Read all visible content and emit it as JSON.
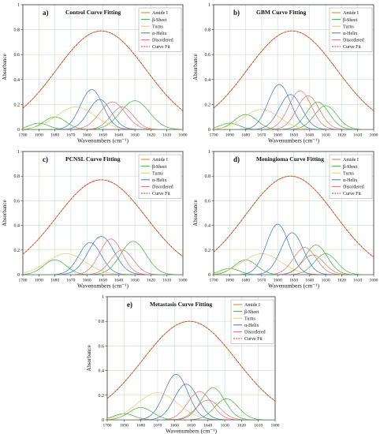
{
  "chart_data": [
    {
      "type": "line",
      "panel_label": "a)",
      "title": "Control Curve Fitting",
      "xlabel": "Wavenumbers (cm⁻¹)",
      "ylabel": "Absorbance",
      "xlim": [
        1700,
        1600
      ],
      "ylim": [
        0,
        1
      ],
      "x_ticks": [
        1700,
        1690,
        1680,
        1670,
        1660,
        1650,
        1640,
        1630,
        1620,
        1610,
        1600
      ],
      "y_ticks": [
        0,
        0.2,
        0.4,
        0.6,
        0.8,
        1
      ],
      "grid": true,
      "legend_position": "top-right",
      "series": [
        {
          "name": "Amide I",
          "color": "#e07a2a",
          "style": "solid",
          "peaks": [
            [
              1651,
              0.79,
              28
            ]
          ]
        },
        {
          "name": "β-Sheet",
          "color": "#3db03d",
          "style": "solid",
          "peaks": [
            [
              1690,
              0.05,
              6
            ],
            [
              1680,
              0.1,
              7
            ],
            [
              1630,
              0.23,
              9
            ]
          ]
        },
        {
          "name": "Turns",
          "color": "#e8c86a",
          "style": "solid",
          "peaks": [
            [
              1667,
              0.18,
              12
            ]
          ]
        },
        {
          "name": "α-Helix",
          "color": "#3a6fd8",
          "style": "solid",
          "peaks": [
            [
              1657,
              0.32,
              7
            ],
            [
              1652,
              0.24,
              7
            ]
          ]
        },
        {
          "name": "Disordered",
          "color": "#e07070",
          "style": "solid",
          "peaks": [
            [
              1644,
              0.22,
              8
            ],
            [
              1638,
              0.18,
              7
            ]
          ]
        },
        {
          "name": "Curve Fit",
          "color": "#d23a1e",
          "style": "dashed",
          "peaks": [
            [
              1651,
              0.79,
              28
            ]
          ]
        }
      ]
    },
    {
      "type": "line",
      "panel_label": "b)",
      "title": "GBM Curve Fitting",
      "xlabel": "Wavenumbers (cm⁻¹)",
      "ylabel": "Absorbance",
      "xlim": [
        1700,
        1600
      ],
      "ylim": [
        0,
        1
      ],
      "x_ticks": [
        1700,
        1690,
        1680,
        1670,
        1660,
        1650,
        1640,
        1630,
        1620,
        1610,
        1600
      ],
      "y_ticks": [
        0,
        0.2,
        0.4,
        0.6,
        0.8,
        1
      ],
      "grid": true,
      "legend_position": "top-right",
      "series": [
        {
          "name": "Amide I",
          "color": "#e07a2a",
          "style": "solid",
          "peaks": [
            [
              1651,
              0.79,
              28
            ]
          ]
        },
        {
          "name": "β-Sheet",
          "color": "#3db03d",
          "style": "solid",
          "peaks": [
            [
              1690,
              0.05,
              6
            ],
            [
              1680,
              0.12,
              7
            ],
            [
              1635,
              0.22,
              7
            ],
            [
              1630,
              0.19,
              7
            ]
          ]
        },
        {
          "name": "Turns",
          "color": "#e8c86a",
          "style": "solid",
          "peaks": [
            [
              1670,
              0.16,
              11
            ]
          ]
        },
        {
          "name": "α-Helix",
          "color": "#3a6fd8",
          "style": "solid",
          "peaks": [
            [
              1659,
              0.36,
              7
            ],
            [
              1652,
              0.28,
              7
            ]
          ]
        },
        {
          "name": "Disordered",
          "color": "#e07070",
          "style": "solid",
          "peaks": [
            [
              1646,
              0.31,
              7
            ],
            [
              1641,
              0.27,
              7
            ]
          ]
        },
        {
          "name": "Curve Fit",
          "color": "#d23a1e",
          "style": "dashed",
          "peaks": [
            [
              1651,
              0.79,
              28
            ]
          ]
        }
      ]
    },
    {
      "type": "line",
      "panel_label": "c)",
      "title": "PCNSL Curve Fitting",
      "xlabel": "Wavenumbers (cm⁻¹)",
      "ylabel": "Absorbance",
      "xlim": [
        1700,
        1600
      ],
      "ylim": [
        0,
        1
      ],
      "x_ticks": [
        1700,
        1690,
        1680,
        1670,
        1660,
        1650,
        1640,
        1630,
        1620,
        1610,
        1600
      ],
      "y_ticks": [
        0,
        0.2,
        0.4,
        0.6,
        0.8,
        1
      ],
      "grid": true,
      "legend_position": "top-right",
      "series": [
        {
          "name": "Amide I",
          "color": "#e07a2a",
          "style": "solid",
          "peaks": [
            [
              1651,
              0.77,
              28
            ]
          ]
        },
        {
          "name": "β-Sheet",
          "color": "#3db03d",
          "style": "solid",
          "peaks": [
            [
              1680,
              0.12,
              7
            ],
            [
              1631,
              0.27,
              8
            ]
          ]
        },
        {
          "name": "Turns",
          "color": "#e8c86a",
          "style": "solid",
          "peaks": [
            [
              1673,
              0.17,
              12
            ]
          ]
        },
        {
          "name": "α-Helix",
          "color": "#3a6fd8",
          "style": "solid",
          "peaks": [
            [
              1658,
              0.26,
              7
            ],
            [
              1651,
              0.31,
              8
            ]
          ]
        },
        {
          "name": "Disordered",
          "color": "#e07070",
          "style": "solid",
          "peaks": [
            [
              1645,
              0.29,
              7
            ],
            [
              1638,
              0.2,
              7
            ]
          ]
        },
        {
          "name": "Curve Fit",
          "color": "#d23a1e",
          "style": "dashed",
          "peaks": [
            [
              1651,
              0.77,
              28
            ]
          ]
        }
      ]
    },
    {
      "type": "line",
      "panel_label": "d)",
      "title": "Meningioma Curve Fitting",
      "xlabel": "Wavenumbers (cm⁻¹)",
      "ylabel": "Absorbance",
      "xlim": [
        1700,
        1600
      ],
      "ylim": [
        0,
        1
      ],
      "x_ticks": [
        1700,
        1690,
        1680,
        1670,
        1660,
        1650,
        1640,
        1630,
        1620,
        1610,
        1600
      ],
      "y_ticks": [
        0,
        0.2,
        0.4,
        0.6,
        0.8,
        1
      ],
      "grid": true,
      "legend_position": "top-right",
      "series": [
        {
          "name": "Amide I",
          "color": "#e07a2a",
          "style": "solid",
          "peaks": [
            [
              1652,
              0.8,
              28
            ]
          ]
        },
        {
          "name": "β-Sheet",
          "color": "#3db03d",
          "style": "solid",
          "peaks": [
            [
              1690,
              0.05,
              6
            ],
            [
              1680,
              0.12,
              7
            ],
            [
              1636,
              0.24,
              7
            ],
            [
              1630,
              0.17,
              7
            ]
          ]
        },
        {
          "name": "Turns",
          "color": "#e8c86a",
          "style": "solid",
          "peaks": [
            [
              1670,
              0.17,
              12
            ]
          ]
        },
        {
          "name": "α-Helix",
          "color": "#3a6fd8",
          "style": "solid",
          "peaks": [
            [
              1660,
              0.41,
              7
            ],
            [
              1651,
              0.34,
              7
            ]
          ]
        },
        {
          "name": "Disordered",
          "color": "#e07070",
          "style": "solid",
          "peaks": [
            [
              1643,
              0.22,
              7
            ],
            [
              1638,
              0.16,
              7
            ]
          ]
        },
        {
          "name": "Curve Fit",
          "color": "#d23a1e",
          "style": "dashed",
          "peaks": [
            [
              1652,
              0.8,
              28
            ]
          ]
        }
      ]
    },
    {
      "type": "line",
      "panel_label": "e)",
      "title": "Metastasis Curve Fitting",
      "xlabel": "Wavenumbers (cm⁻¹)",
      "ylabel": "Absorbance",
      "xlim": [
        1700,
        1600
      ],
      "ylim": [
        0,
        1
      ],
      "x_ticks": [
        1700,
        1690,
        1680,
        1670,
        1660,
        1650,
        1640,
        1630,
        1620,
        1610,
        1600
      ],
      "y_ticks": [
        0,
        0.2,
        0.4,
        0.6,
        0.8,
        1
      ],
      "grid": true,
      "legend_position": "top-right",
      "series": [
        {
          "name": "Amide I",
          "color": "#e07a2a",
          "style": "solid",
          "peaks": [
            [
              1651,
              0.8,
              28
            ]
          ]
        },
        {
          "name": "β-Sheet",
          "color": "#3db03d",
          "style": "solid",
          "peaks": [
            [
              1690,
              0.05,
              6
            ],
            [
              1680,
              0.1,
              7
            ],
            [
              1637,
              0.26,
              7
            ],
            [
              1629,
              0.17,
              7
            ]
          ]
        },
        {
          "name": "Turns",
          "color": "#e8c86a",
          "style": "solid",
          "peaks": [
            [
              1670,
              0.22,
              12
            ]
          ]
        },
        {
          "name": "α-Helix",
          "color": "#3a6fd8",
          "style": "solid",
          "peaks": [
            [
              1659,
              0.37,
              7
            ],
            [
              1653,
              0.29,
              7
            ]
          ]
        },
        {
          "name": "Disordered",
          "color": "#e07070",
          "style": "solid",
          "peaks": [
            [
              1645,
              0.23,
              7
            ],
            [
              1640,
              0.16,
              7
            ]
          ]
        },
        {
          "name": "Curve Fit",
          "color": "#d23a1e",
          "style": "dashed",
          "peaks": [
            [
              1651,
              0.8,
              28
            ]
          ]
        }
      ]
    }
  ]
}
